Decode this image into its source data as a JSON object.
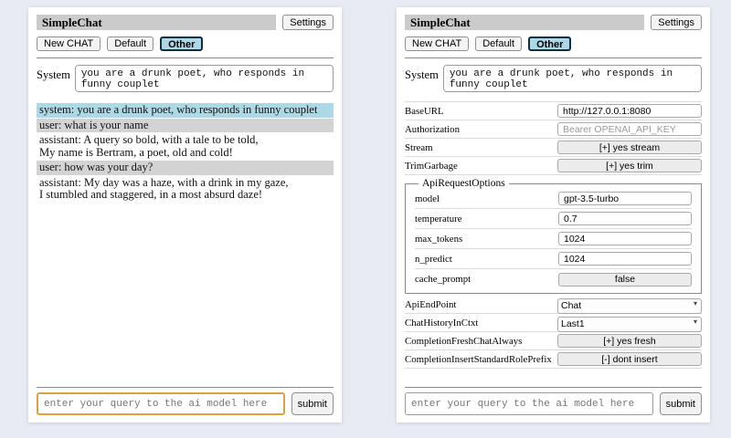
{
  "app": {
    "title": "SimpleChat",
    "settings_label": "Settings",
    "toolbar": {
      "new_chat_label": "New CHAT",
      "session_default_label": "Default",
      "session_other_label": "Other",
      "active_session": "Other"
    },
    "system_label": "System",
    "system_prompt": "you are a drunk poet, who responds in funny couplet",
    "query_placeholder": "enter your query to the ai model here",
    "submit_label": "submit"
  },
  "chat": {
    "messages": [
      {
        "role": "system",
        "text": "system: you are a drunk poet, who responds in funny couplet"
      },
      {
        "role": "user",
        "text": "user: what is your name"
      },
      {
        "role": "assistant",
        "text": "assistant: A query so bold, with a tale to be told,\nMy name is Bertram, a poet, old and cold!"
      },
      {
        "role": "user",
        "text": "user: how was your day?"
      },
      {
        "role": "assistant",
        "text": "assistant: My day was a haze, with a drink in my gaze,\nI stumbled and staggered, in a most absurd daze!"
      }
    ]
  },
  "settings": {
    "base_url": {
      "label": "BaseURL",
      "value": "http://127.0.0.1:8080"
    },
    "authorization": {
      "label": "Authorization",
      "placeholder": "Bearer OPENAI_API_KEY"
    },
    "stream": {
      "label": "Stream",
      "button": "[+] yes stream"
    },
    "trim_garbage": {
      "label": "TrimGarbage",
      "button": "[+] yes trim"
    },
    "api_request_options": {
      "legend": "ApiRequestOptions",
      "model": {
        "label": "model",
        "value": "gpt-3.5-turbo"
      },
      "temperature": {
        "label": "temperature",
        "value": "0.7"
      },
      "max_tokens": {
        "label": "max_tokens",
        "value": "1024"
      },
      "n_predict": {
        "label": "n_predict",
        "value": "1024"
      },
      "cache_prompt": {
        "label": "cache_prompt",
        "button": "false"
      }
    },
    "api_endpoint": {
      "label": "ApiEndPoint",
      "selected": "Chat"
    },
    "chat_history_in_ctxt": {
      "label": "ChatHistoryInCtxt",
      "selected": "Last1"
    },
    "completion_fresh_chat_always": {
      "label": "CompletionFreshChatAlways",
      "button": "[+] yes fresh"
    },
    "completion_insert_standard_role_prefix": {
      "label": "CompletionInsertStandardRolePrefix",
      "button": "[-] dont insert"
    }
  },
  "colors": {
    "page_background": "#e8ebf3",
    "panel_background": "#ffffff",
    "titlebar_background": "#cbcbcb",
    "system_message_background": "#add8e6",
    "user_message_background": "#d3d3d3",
    "active_session_background": "#add8e6",
    "focused_query_border": "#dda23f",
    "toggle_button_background": "#ececec"
  }
}
